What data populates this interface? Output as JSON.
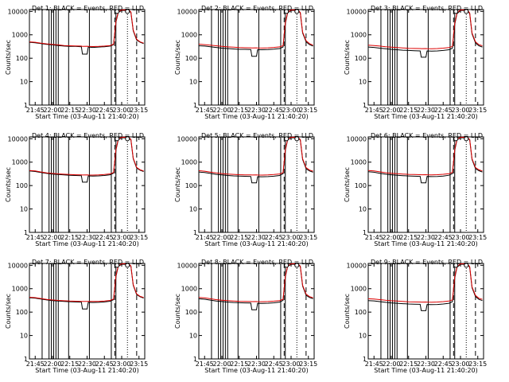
{
  "page": {
    "background": "#ffffff"
  },
  "colors": {
    "events": "#000000",
    "lld": "#dd0000",
    "axis": "#000000"
  },
  "common": {
    "title_suffix": "BLACK = Events, RED = LLD",
    "xlabel": "Start Time (03-Aug-11 21:40:20)",
    "ylabel": "Counts/sec",
    "xlim": [
      "21:40",
      "23:20"
    ],
    "ylim": [
      1,
      12000
    ],
    "yscale": "log",
    "xticks": [
      "21:45",
      "22:00",
      "22:15",
      "22:30",
      "22:45",
      "23:00",
      "23:15"
    ],
    "yticks": [
      "1",
      "10",
      "100",
      "1000",
      "10000"
    ],
    "solid_vlines": [
      "21:51",
      "21:57",
      "21:59",
      "22:01",
      "22:03",
      "22:05",
      "22:14",
      "22:32",
      "22:51",
      "22:55"
    ],
    "dotted_vlines": [
      "23:05"
    ],
    "dashed_vlines": [
      "22:54",
      "23:13"
    ],
    "saturation_level": 10000
  },
  "chart_data": [
    {
      "type": "line",
      "title": "Det 1: BLACK = Events, RED = LLD",
      "x": [
        "21:40",
        "21:45",
        "21:50",
        "21:55",
        "22:00",
        "22:05",
        "22:10",
        "22:15",
        "22:20",
        "22:25",
        "22:26",
        "22:30",
        "22:31",
        "22:35",
        "22:40",
        "22:45",
        "22:50",
        "22:53",
        "22:55",
        "22:57",
        "23:00",
        "23:03",
        "23:06",
        "23:08",
        "23:10",
        "23:13",
        "23:16",
        "23:19"
      ],
      "series": [
        {
          "name": "Events",
          "values": [
            480,
            460,
            420,
            390,
            370,
            350,
            330,
            320,
            320,
            310,
            150,
            150,
            300,
            290,
            300,
            310,
            330,
            380,
            3500,
            9000,
            11000,
            11000,
            11000,
            9000,
            1500,
            600,
            480,
            420
          ]
        },
        {
          "name": "LLD",
          "values": [
            500,
            480,
            440,
            410,
            390,
            370,
            350,
            340,
            335,
            330,
            320,
            325,
            320,
            315,
            320,
            330,
            350,
            400,
            3700,
            9500,
            11500,
            11500,
            11500,
            9500,
            1600,
            650,
            500,
            440
          ]
        }
      ]
    },
    {
      "type": "line",
      "title": "Det 2: BLACK = Events, RED = LLD",
      "x": [
        "21:40",
        "21:45",
        "21:50",
        "21:55",
        "22:00",
        "22:05",
        "22:10",
        "22:15",
        "22:20",
        "22:25",
        "22:26",
        "22:30",
        "22:31",
        "22:35",
        "22:40",
        "22:45",
        "22:50",
        "22:53",
        "22:55",
        "22:57",
        "23:00",
        "23:03",
        "23:06",
        "23:08",
        "23:10",
        "23:13",
        "23:16",
        "23:19"
      ],
      "series": [
        {
          "name": "Events",
          "values": [
            340,
            330,
            310,
            290,
            270,
            260,
            250,
            240,
            240,
            235,
            120,
            120,
            230,
            230,
            235,
            245,
            260,
            300,
            3000,
            8500,
            11000,
            11000,
            11000,
            8500,
            1200,
            500,
            380,
            330
          ]
        },
        {
          "name": "LLD",
          "values": [
            400,
            380,
            360,
            340,
            320,
            305,
            295,
            285,
            280,
            278,
            275,
            278,
            275,
            272,
            278,
            290,
            305,
            340,
            3300,
            9000,
            11500,
            11500,
            11500,
            9000,
            1300,
            560,
            420,
            360
          ]
        }
      ]
    },
    {
      "type": "line",
      "title": "Det 3: BLACK = Events, RED = LLD",
      "x": [
        "21:40",
        "21:45",
        "21:50",
        "21:55",
        "22:00",
        "22:05",
        "22:10",
        "22:15",
        "22:20",
        "22:25",
        "22:26",
        "22:30",
        "22:31",
        "22:35",
        "22:40",
        "22:45",
        "22:50",
        "22:53",
        "22:55",
        "22:57",
        "23:00",
        "23:03",
        "23:06",
        "23:08",
        "23:10",
        "23:13",
        "23:16",
        "23:19"
      ],
      "series": [
        {
          "name": "Events",
          "values": [
            300,
            290,
            270,
            255,
            240,
            230,
            220,
            215,
            210,
            205,
            110,
            110,
            205,
            200,
            205,
            215,
            230,
            270,
            2800,
            8000,
            11000,
            11000,
            11000,
            8000,
            1100,
            450,
            340,
            300
          ]
        },
        {
          "name": "LLD",
          "values": [
            360,
            350,
            330,
            310,
            295,
            285,
            275,
            265,
            262,
            260,
            258,
            260,
            258,
            255,
            260,
            270,
            285,
            320,
            3100,
            8600,
            11500,
            11500,
            11500,
            8600,
            1200,
            500,
            380,
            340
          ]
        }
      ]
    },
    {
      "type": "line",
      "title": "Det 4: BLACK = Events, RED = LLD",
      "x": [
        "21:40",
        "21:45",
        "21:50",
        "21:55",
        "22:00",
        "22:05",
        "22:10",
        "22:15",
        "22:20",
        "22:25",
        "22:26",
        "22:30",
        "22:31",
        "22:35",
        "22:40",
        "22:45",
        "22:50",
        "22:53",
        "22:55",
        "22:57",
        "23:00",
        "23:03",
        "23:06",
        "23:08",
        "23:10",
        "23:13",
        "23:16",
        "23:19"
      ],
      "series": [
        {
          "name": "Events",
          "values": [
            420,
            400,
            360,
            330,
            310,
            295,
            285,
            275,
            270,
            265,
            140,
            140,
            260,
            255,
            260,
            270,
            290,
            340,
            3300,
            9000,
            11000,
            11000,
            11000,
            9000,
            1400,
            560,
            450,
            400
          ]
        },
        {
          "name": "LLD",
          "values": [
            440,
            420,
            380,
            350,
            330,
            315,
            305,
            295,
            290,
            285,
            282,
            285,
            282,
            280,
            285,
            295,
            315,
            360,
            3500,
            9400,
            11500,
            11500,
            11500,
            9400,
            1500,
            600,
            470,
            420
          ]
        }
      ]
    },
    {
      "type": "line",
      "title": "Det 5: BLACK = Events, RED = LLD",
      "x": [
        "21:40",
        "21:45",
        "21:50",
        "21:55",
        "22:00",
        "22:05",
        "22:10",
        "22:15",
        "22:20",
        "22:25",
        "22:26",
        "22:30",
        "22:31",
        "22:35",
        "22:40",
        "22:45",
        "22:50",
        "22:53",
        "22:55",
        "22:57",
        "23:00",
        "23:03",
        "23:06",
        "23:08",
        "23:10",
        "23:13",
        "23:16",
        "23:19"
      ],
      "series": [
        {
          "name": "Events",
          "values": [
            380,
            360,
            330,
            300,
            285,
            270,
            260,
            255,
            250,
            245,
            130,
            130,
            240,
            238,
            242,
            252,
            270,
            320,
            3200,
            8800,
            11000,
            11000,
            11000,
            8800,
            1300,
            520,
            420,
            370
          ]
        },
        {
          "name": "LLD",
          "values": [
            430,
            410,
            375,
            345,
            325,
            310,
            300,
            292,
            288,
            285,
            282,
            285,
            282,
            280,
            285,
            295,
            312,
            355,
            3450,
            9200,
            11500,
            11500,
            11500,
            9200,
            1400,
            580,
            460,
            410
          ]
        }
      ]
    },
    {
      "type": "line",
      "title": "Det 6: BLACK = Events, RED = LLD",
      "x": [
        "21:40",
        "21:45",
        "21:50",
        "21:55",
        "22:00",
        "22:05",
        "22:10",
        "22:15",
        "22:20",
        "22:25",
        "22:26",
        "22:30",
        "22:31",
        "22:35",
        "22:40",
        "22:45",
        "22:50",
        "22:53",
        "22:55",
        "22:57",
        "23:00",
        "23:03",
        "23:06",
        "23:08",
        "23:10",
        "23:13",
        "23:16",
        "23:19"
      ],
      "series": [
        {
          "name": "Events",
          "values": [
            390,
            370,
            335,
            305,
            290,
            275,
            265,
            258,
            252,
            248,
            130,
            130,
            245,
            242,
            246,
            256,
            275,
            325,
            3250,
            8900,
            11000,
            11000,
            11000,
            8900,
            1300,
            530,
            430,
            380
          ]
        },
        {
          "name": "LLD",
          "values": [
            440,
            420,
            385,
            355,
            335,
            320,
            310,
            300,
            296,
            292,
            290,
            292,
            290,
            288,
            292,
            302,
            320,
            365,
            3500,
            9300,
            11500,
            11500,
            11500,
            9300,
            1400,
            590,
            470,
            420
          ]
        }
      ]
    },
    {
      "type": "line",
      "title": "Det 7: BLACK = Events, RED = LLD",
      "x": [
        "21:40",
        "21:45",
        "21:50",
        "21:55",
        "22:00",
        "22:05",
        "22:10",
        "22:15",
        "22:20",
        "22:25",
        "22:26",
        "22:30",
        "22:31",
        "22:35",
        "22:40",
        "22:45",
        "22:50",
        "22:53",
        "22:55",
        "22:57",
        "23:00",
        "23:03",
        "23:06",
        "23:08",
        "23:10",
        "23:13",
        "23:16",
        "23:19"
      ],
      "series": [
        {
          "name": "Events",
          "values": [
            410,
            395,
            360,
            330,
            310,
            295,
            285,
            278,
            272,
            268,
            135,
            135,
            262,
            258,
            262,
            272,
            292,
            340,
            3300,
            9000,
            11000,
            11000,
            11000,
            9000,
            1400,
            560,
            450,
            400
          ]
        },
        {
          "name": "LLD",
          "values": [
            430,
            415,
            380,
            350,
            330,
            315,
            305,
            297,
            292,
            288,
            286,
            288,
            286,
            284,
            288,
            298,
            316,
            360,
            3500,
            9400,
            11500,
            11500,
            11500,
            9400,
            1500,
            600,
            470,
            420
          ]
        }
      ]
    },
    {
      "type": "line",
      "title": "Det 8: BLACK = Events, RED = LLD",
      "x": [
        "21:40",
        "21:45",
        "21:50",
        "21:55",
        "22:00",
        "22:05",
        "22:10",
        "22:15",
        "22:20",
        "22:25",
        "22:26",
        "22:30",
        "22:31",
        "22:35",
        "22:40",
        "22:45",
        "22:50",
        "22:53",
        "22:55",
        "22:57",
        "23:00",
        "23:03",
        "23:06",
        "23:08",
        "23:10",
        "23:13",
        "23:16",
        "23:19"
      ],
      "series": [
        {
          "name": "Events",
          "values": [
            370,
            355,
            325,
            298,
            282,
            268,
            258,
            252,
            247,
            243,
            125,
            125,
            238,
            235,
            239,
            249,
            268,
            318,
            3200,
            8800,
            11000,
            11000,
            11000,
            8800,
            1300,
            520,
            420,
            370
          ]
        },
        {
          "name": "LLD",
          "values": [
            420,
            405,
            372,
            342,
            322,
            308,
            298,
            290,
            286,
            283,
            281,
            283,
            281,
            279,
            283,
            293,
            310,
            352,
            3400,
            9200,
            11500,
            11500,
            11500,
            9200,
            1400,
            580,
            460,
            410
          ]
        }
      ]
    },
    {
      "type": "line",
      "title": "Det 9: BLACK = Events, RED = LLD",
      "x": [
        "21:40",
        "21:45",
        "21:50",
        "21:55",
        "22:00",
        "22:05",
        "22:10",
        "22:15",
        "22:20",
        "22:25",
        "22:26",
        "22:30",
        "22:31",
        "22:35",
        "22:40",
        "22:45",
        "22:50",
        "22:53",
        "22:55",
        "22:57",
        "23:00",
        "23:03",
        "23:06",
        "23:08",
        "23:10",
        "23:13",
        "23:16",
        "23:19"
      ],
      "series": [
        {
          "name": "Events",
          "values": [
            310,
            300,
            280,
            262,
            248,
            238,
            228,
            222,
            218,
            214,
            115,
            115,
            212,
            208,
            212,
            222,
            238,
            280,
            2900,
            8200,
            11000,
            11000,
            11000,
            8200,
            1100,
            460,
            350,
            310
          ]
        },
        {
          "name": "LLD",
          "values": [
            370,
            360,
            340,
            320,
            305,
            295,
            285,
            275,
            272,
            270,
            268,
            270,
            268,
            265,
            270,
            280,
            295,
            330,
            3150,
            8700,
            11500,
            11500,
            11500,
            8700,
            1200,
            510,
            390,
            350
          ]
        }
      ]
    }
  ]
}
